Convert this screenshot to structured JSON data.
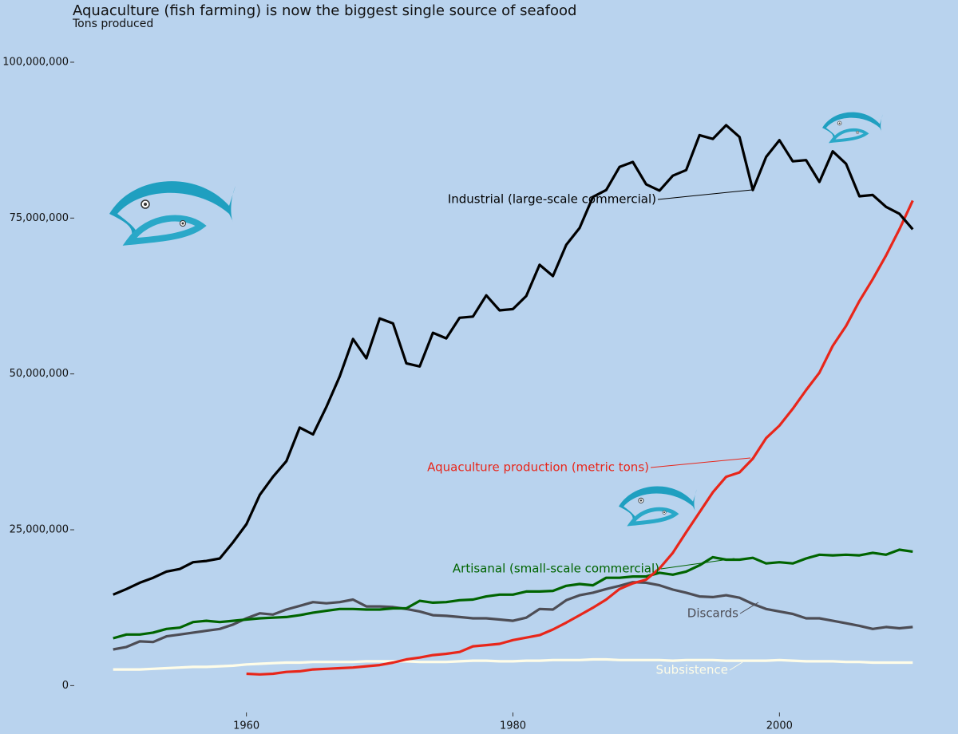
{
  "chart_data": {
    "type": "line",
    "title": "Aquaculture (fish farming) is now the biggest single source of seafood",
    "subtitle": "Tons produced",
    "x": [
      1950,
      1951,
      1952,
      1953,
      1954,
      1955,
      1956,
      1957,
      1958,
      1959,
      1960,
      1961,
      1962,
      1963,
      1964,
      1965,
      1966,
      1967,
      1968,
      1969,
      1970,
      1971,
      1972,
      1973,
      1974,
      1975,
      1976,
      1977,
      1978,
      1979,
      1980,
      1981,
      1982,
      1983,
      1984,
      1985,
      1986,
      1987,
      1988,
      1989,
      1990,
      1991,
      1992,
      1993,
      1994,
      1995,
      1996,
      1997,
      1998,
      1999,
      2000,
      2001,
      2002,
      2003,
      2004,
      2005,
      2006,
      2007,
      2008,
      2009,
      2010
    ],
    "xlim": [
      1947.2,
      2012.8
    ],
    "xticks": [
      1960,
      1980,
      2000
    ],
    "ylim": [
      -5200000,
      108700000
    ],
    "yticks": [
      {
        "value": 0,
        "label": "0"
      },
      {
        "value": 25000000,
        "label": "25,000,000"
      },
      {
        "value": 50000000,
        "label": "50,000,000"
      },
      {
        "value": 75000000,
        "label": "75,000,000"
      },
      {
        "value": 100000000,
        "label": "100,000,000"
      }
    ],
    "grid": false,
    "series": [
      {
        "name": "Industrial (large-scale commercial)",
        "color": "#000000",
        "values": [
          14600000,
          15500000,
          16500000,
          17300000,
          18300000,
          18700000,
          19800000,
          20000000,
          20400000,
          23000000,
          25900000,
          30600000,
          33500000,
          36000000,
          41400000,
          40300000,
          44700000,
          49600000,
          55600000,
          52500000,
          58900000,
          58100000,
          51700000,
          51200000,
          56600000,
          55700000,
          59000000,
          59200000,
          62600000,
          60200000,
          60400000,
          62500000,
          67500000,
          65700000,
          70700000,
          73400000,
          78400000,
          79500000,
          83200000,
          84000000,
          80400000,
          79400000,
          81800000,
          82700000,
          88300000,
          87700000,
          89900000,
          88000000,
          79500000,
          84800000,
          87500000,
          84100000,
          84300000,
          80800000,
          85700000,
          83700000,
          78500000,
          78700000,
          76800000,
          75700000,
          73200000
        ]
      },
      {
        "name": "Aquaculture production (metric tons)",
        "color": "#e8261a",
        "values": [
          null,
          null,
          null,
          null,
          null,
          null,
          null,
          null,
          null,
          null,
          1900000,
          1800000,
          1900000,
          2200000,
          2300000,
          2600000,
          2700000,
          2800000,
          2900000,
          3100000,
          3300000,
          3700000,
          4200000,
          4500000,
          4900000,
          5100000,
          5400000,
          6300000,
          6500000,
          6700000,
          7300000,
          7700000,
          8100000,
          9000000,
          10100000,
          11300000,
          12500000,
          13800000,
          15500000,
          16400000,
          17000000,
          18800000,
          21300000,
          24600000,
          27800000,
          31000000,
          33500000,
          34200000,
          36400000,
          39700000,
          41700000,
          44400000,
          47400000,
          50200000,
          54500000,
          57700000,
          61700000,
          65200000,
          69000000,
          73200000,
          77800000
        ]
      },
      {
        "name": "Artisanal (small-scale commercial)",
        "color": "#006400",
        "values": [
          7600000,
          8200000,
          8200000,
          8500000,
          9100000,
          9300000,
          10200000,
          10400000,
          10200000,
          10400000,
          10600000,
          10800000,
          10900000,
          11000000,
          11300000,
          11700000,
          12000000,
          12300000,
          12300000,
          12200000,
          12200000,
          12400000,
          12400000,
          13600000,
          13300000,
          13400000,
          13700000,
          13800000,
          14300000,
          14600000,
          14600000,
          15100000,
          15100000,
          15200000,
          16000000,
          16300000,
          16100000,
          17300000,
          17300000,
          17500000,
          17500000,
          18100000,
          17800000,
          18300000,
          19300000,
          20600000,
          20200000,
          20200000,
          20500000,
          19600000,
          19800000,
          19600000,
          20400000,
          21000000,
          20900000,
          21000000,
          20900000,
          21300000,
          21000000,
          21800000,
          21500000
        ]
      },
      {
        "name": "Discards",
        "color": "#4d4d55",
        "values": [
          5800000,
          6200000,
          7100000,
          7000000,
          7900000,
          8200000,
          8500000,
          8800000,
          9100000,
          9800000,
          10800000,
          11600000,
          11400000,
          12200000,
          12800000,
          13400000,
          13200000,
          13400000,
          13800000,
          12700000,
          12700000,
          12600000,
          12300000,
          11900000,
          11300000,
          11200000,
          11000000,
          10800000,
          10800000,
          10600000,
          10400000,
          10900000,
          12300000,
          12200000,
          13700000,
          14500000,
          14900000,
          15500000,
          16000000,
          16600000,
          16500000,
          16100000,
          15400000,
          14900000,
          14300000,
          14200000,
          14500000,
          14100000,
          13100000,
          12300000,
          11900000,
          11500000,
          10800000,
          10800000,
          10400000,
          10000000,
          9600000,
          9100000,
          9400000,
          9200000,
          9400000
        ]
      },
      {
        "name": "Subsistence",
        "color": "#fffde8",
        "values": [
          2600000,
          2600000,
          2600000,
          2700000,
          2800000,
          2900000,
          3000000,
          3000000,
          3100000,
          3200000,
          3400000,
          3500000,
          3600000,
          3700000,
          3700000,
          3800000,
          3800000,
          3800000,
          3800000,
          3900000,
          3900000,
          3900000,
          3900000,
          3800000,
          3800000,
          3800000,
          3900000,
          4000000,
          4000000,
          3900000,
          3900000,
          4000000,
          4000000,
          4100000,
          4100000,
          4100000,
          4200000,
          4200000,
          4100000,
          4100000,
          4100000,
          4100000,
          4000000,
          4100000,
          4100000,
          4100000,
          4000000,
          4000000,
          4000000,
          4000000,
          4100000,
          4000000,
          3900000,
          3900000,
          3900000,
          3800000,
          3800000,
          3700000,
          3700000,
          3700000,
          3700000
        ]
      }
    ]
  }
}
